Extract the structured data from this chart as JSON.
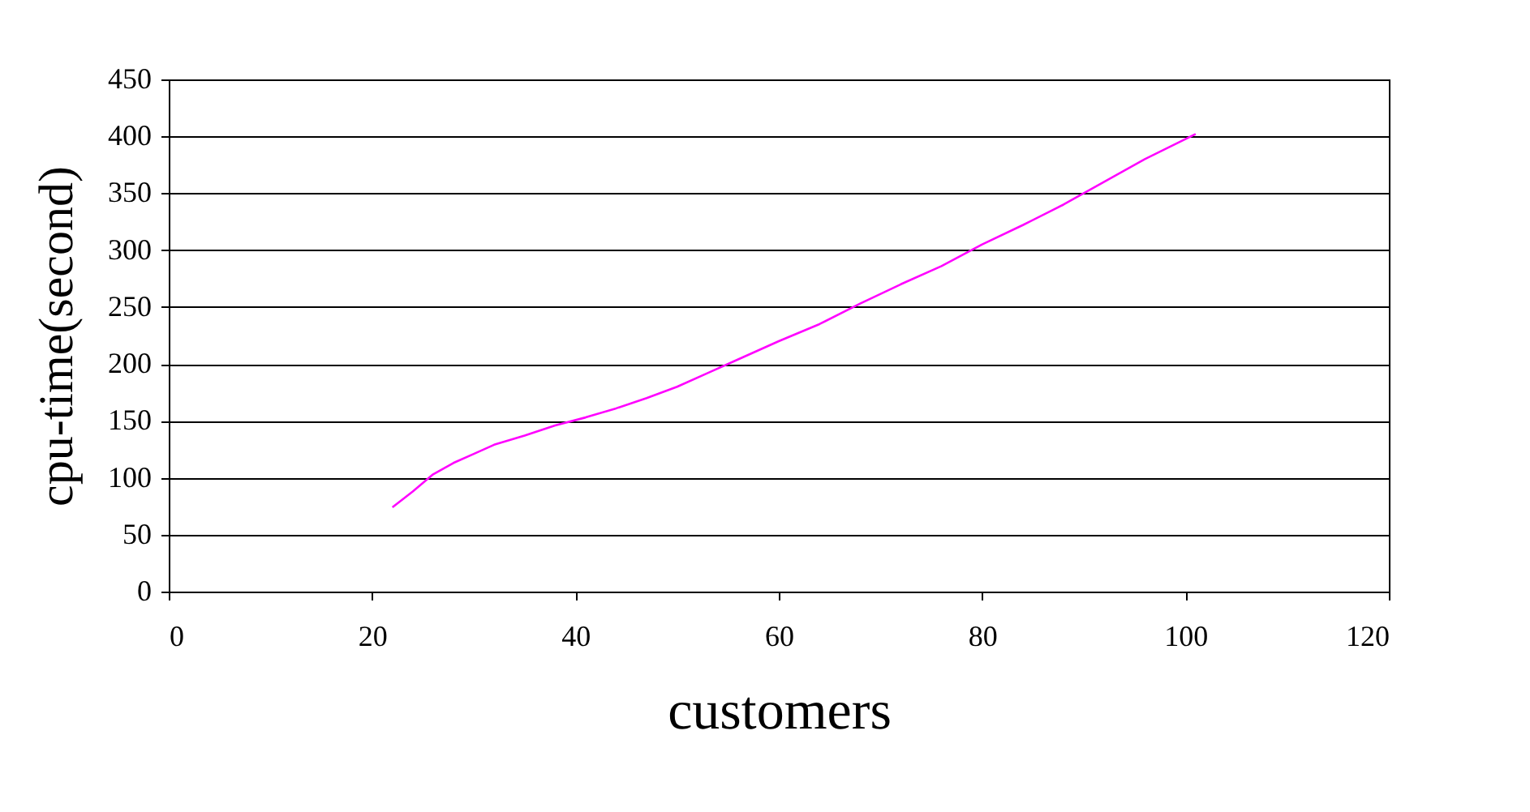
{
  "chart_data": {
    "type": "line",
    "xlabel": "customers",
    "ylabel": "cpu-time(second)",
    "series": [
      {
        "color": "#ff00ff",
        "x": [
          22,
          24,
          26,
          28,
          30,
          32,
          35,
          38,
          41,
          44,
          47,
          50,
          53,
          56,
          60,
          64,
          68,
          72,
          76,
          80,
          84,
          88,
          92,
          96,
          101
        ],
        "values": [
          74,
          88,
          103,
          113,
          121,
          129,
          137,
          146,
          153,
          161,
          170,
          180,
          192,
          204,
          220,
          235,
          253,
          270,
          286,
          305,
          322,
          340,
          360,
          380,
          402
        ]
      }
    ],
    "xlim": [
      0,
      120
    ],
    "xticks": [
      0,
      20,
      40,
      60,
      80,
      100,
      120
    ],
    "ylim": [
      0,
      450
    ],
    "yticks": [
      0,
      50,
      100,
      150,
      200,
      250,
      300,
      350,
      400,
      450
    ],
    "grid": "y",
    "marker": "none",
    "line_style": "solid"
  }
}
